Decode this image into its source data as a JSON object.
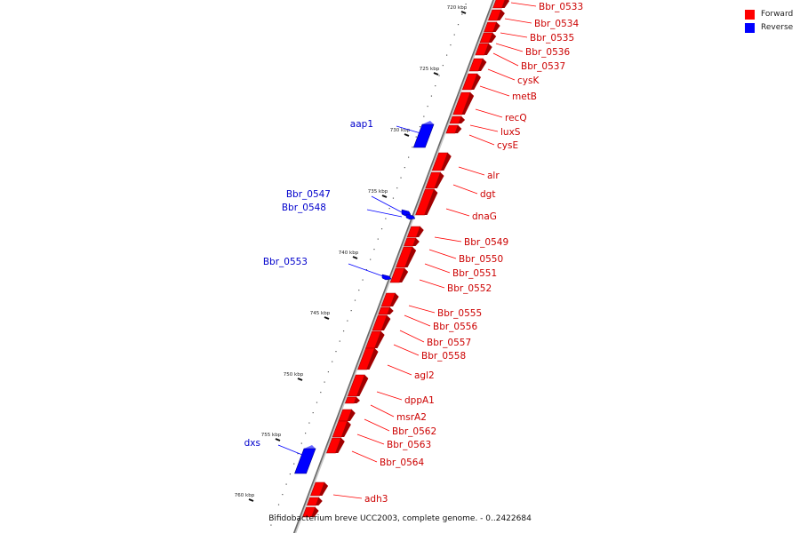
{
  "caption": "Bifidobacterium breve UCC2003, complete genome. - 0..2422684",
  "legend": [
    {
      "label": "Forward",
      "color": "#ff0000"
    },
    {
      "label": "Reverse",
      "color": "#0000ff"
    }
  ],
  "colors": {
    "forward_fill": "#ff0000",
    "forward_dark": "#a00000",
    "reverse_fill": "#0000ff",
    "reverse_dark": "#000088",
    "forward_text": "#cc0000",
    "reverse_text": "#0000cc",
    "backbone": "#888888"
  },
  "ticks": [
    "720 kbp",
    "725 kbp",
    "730 kbp",
    "735 kbp",
    "740 kbp",
    "745 kbp",
    "750 kbp",
    "755 kbp",
    "760 kbp"
  ],
  "genes": [
    {
      "name": "Bbr_0533",
      "strand": "forward"
    },
    {
      "name": "Bbr_0534",
      "strand": "forward"
    },
    {
      "name": "Bbr_0535",
      "strand": "forward"
    },
    {
      "name": "Bbr_0536",
      "strand": "forward"
    },
    {
      "name": "Bbr_0537",
      "strand": "forward"
    },
    {
      "name": "cysK",
      "strand": "forward"
    },
    {
      "name": "metB",
      "strand": "forward"
    },
    {
      "name": "recQ",
      "strand": "forward"
    },
    {
      "name": "luxS",
      "strand": "forward"
    },
    {
      "name": "cysE",
      "strand": "forward"
    },
    {
      "name": "aap1",
      "strand": "reverse"
    },
    {
      "name": "alr",
      "strand": "forward"
    },
    {
      "name": "dgt",
      "strand": "forward"
    },
    {
      "name": "dnaG",
      "strand": "forward"
    },
    {
      "name": "Bbr_0547",
      "strand": "reverse"
    },
    {
      "name": "Bbr_0548",
      "strand": "reverse"
    },
    {
      "name": "Bbr_0549",
      "strand": "forward"
    },
    {
      "name": "Bbr_0550",
      "strand": "forward"
    },
    {
      "name": "Bbr_0551",
      "strand": "forward"
    },
    {
      "name": "Bbr_0552",
      "strand": "forward"
    },
    {
      "name": "Bbr_0553",
      "strand": "reverse"
    },
    {
      "name": "Bbr_0555",
      "strand": "forward"
    },
    {
      "name": "Bbr_0556",
      "strand": "forward"
    },
    {
      "name": "Bbr_0557",
      "strand": "forward"
    },
    {
      "name": "Bbr_0558",
      "strand": "forward"
    },
    {
      "name": "agl2",
      "strand": "forward"
    },
    {
      "name": "dppA1",
      "strand": "forward"
    },
    {
      "name": "msrA2",
      "strand": "forward"
    },
    {
      "name": "Bbr_0562",
      "strand": "forward"
    },
    {
      "name": "Bbr_0563",
      "strand": "forward"
    },
    {
      "name": "Bbr_0564",
      "strand": "forward"
    },
    {
      "name": "dxs",
      "strand": "reverse"
    },
    {
      "name": "adh3",
      "strand": "forward"
    }
  ]
}
